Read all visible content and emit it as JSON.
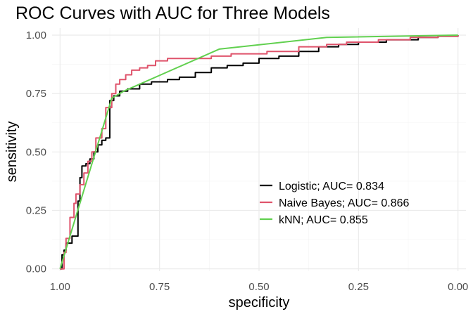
{
  "chart_data": {
    "type": "line",
    "title": "ROC Curves with AUC for Three Models",
    "xlabel": "specificity",
    "ylabel": "sensitivity",
    "x_reversed": true,
    "xlim": [
      1.02,
      -0.02
    ],
    "ylim": [
      -0.01,
      1.03
    ],
    "x_ticks": [
      {
        "value": 1.0,
        "label": "1.00"
      },
      {
        "value": 0.75,
        "label": "0.75"
      },
      {
        "value": 0.5,
        "label": "0.50"
      },
      {
        "value": 0.25,
        "label": "0.25"
      },
      {
        "value": 0.0,
        "label": "0.00"
      }
    ],
    "y_ticks": [
      {
        "value": 0.0,
        "label": "0.00"
      },
      {
        "value": 0.25,
        "label": "0.25"
      },
      {
        "value": 0.5,
        "label": "0.50"
      },
      {
        "value": 0.75,
        "label": "0.75"
      },
      {
        "value": 1.0,
        "label": "1.00"
      }
    ],
    "grid": true,
    "legend_position": "bottom-right",
    "series": [
      {
        "name": "Logistic; AUC= 0.834",
        "color": "#000000",
        "step": true,
        "points": [
          [
            1.0,
            0.0
          ],
          [
            0.995,
            0.06
          ],
          [
            0.99,
            0.08
          ],
          [
            0.985,
            0.11
          ],
          [
            0.97,
            0.14
          ],
          [
            0.955,
            0.29
          ],
          [
            0.95,
            0.39
          ],
          [
            0.945,
            0.44
          ],
          [
            0.935,
            0.45
          ],
          [
            0.925,
            0.47
          ],
          [
            0.915,
            0.5
          ],
          [
            0.905,
            0.53
          ],
          [
            0.895,
            0.55
          ],
          [
            0.885,
            0.56
          ],
          [
            0.875,
            0.72
          ],
          [
            0.865,
            0.74
          ],
          [
            0.85,
            0.76
          ],
          [
            0.83,
            0.77
          ],
          [
            0.8,
            0.79
          ],
          [
            0.77,
            0.8
          ],
          [
            0.73,
            0.81
          ],
          [
            0.7,
            0.82
          ],
          [
            0.66,
            0.84
          ],
          [
            0.62,
            0.86
          ],
          [
            0.58,
            0.87
          ],
          [
            0.54,
            0.88
          ],
          [
            0.5,
            0.9
          ],
          [
            0.45,
            0.91
          ],
          [
            0.4,
            0.93
          ],
          [
            0.35,
            0.95
          ],
          [
            0.3,
            0.96
          ],
          [
            0.25,
            0.97
          ],
          [
            0.18,
            0.98
          ],
          [
            0.1,
            0.99
          ],
          [
            0.05,
            0.995
          ],
          [
            0.0,
            1.0
          ]
        ]
      },
      {
        "name": "Naive Bayes; AUC= 0.866",
        "color": "#df536b",
        "step": true,
        "points": [
          [
            1.0,
            0.0
          ],
          [
            0.99,
            0.07
          ],
          [
            0.985,
            0.13
          ],
          [
            0.975,
            0.22
          ],
          [
            0.965,
            0.28
          ],
          [
            0.96,
            0.32
          ],
          [
            0.95,
            0.36
          ],
          [
            0.94,
            0.41
          ],
          [
            0.93,
            0.46
          ],
          [
            0.92,
            0.5
          ],
          [
            0.91,
            0.56
          ],
          [
            0.895,
            0.6
          ],
          [
            0.885,
            0.69
          ],
          [
            0.87,
            0.75
          ],
          [
            0.86,
            0.79
          ],
          [
            0.85,
            0.81
          ],
          [
            0.835,
            0.83
          ],
          [
            0.82,
            0.85
          ],
          [
            0.8,
            0.86
          ],
          [
            0.78,
            0.87
          ],
          [
            0.76,
            0.89
          ],
          [
            0.73,
            0.9
          ],
          [
            0.68,
            0.9
          ],
          [
            0.62,
            0.91
          ],
          [
            0.57,
            0.92
          ],
          [
            0.53,
            0.92
          ],
          [
            0.48,
            0.93
          ],
          [
            0.4,
            0.95
          ],
          [
            0.33,
            0.96
          ],
          [
            0.28,
            0.97
          ],
          [
            0.2,
            0.98
          ],
          [
            0.12,
            0.99
          ],
          [
            0.05,
            0.995
          ],
          [
            0.0,
            1.0
          ]
        ]
      },
      {
        "name": "kNN; AUC= 0.855",
        "color": "#61d04f",
        "step": false,
        "points": [
          [
            1.0,
            0.0
          ],
          [
            0.87,
            0.73
          ],
          [
            0.84,
            0.76
          ],
          [
            0.6,
            0.94
          ],
          [
            0.33,
            0.99
          ],
          [
            0.0,
            1.0
          ]
        ]
      }
    ]
  }
}
